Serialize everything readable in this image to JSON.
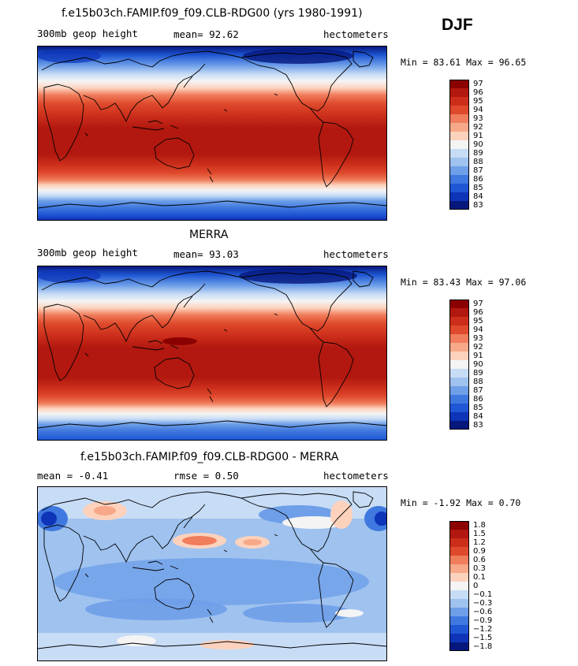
{
  "season": "DJF",
  "panels": [
    {
      "title": "f.e15b03ch.FAMIP.f09_f09.CLB-RDG00 (yrs 1980-1991)",
      "left_label": "300mb geop height",
      "center_label": "mean=  92.62",
      "units": "hectometers",
      "minmax": "Min =  83.61 Max =  96.65",
      "levels": [
        "97",
        "96",
        "95",
        "94",
        "93",
        "92",
        "91",
        "90",
        "89",
        "88",
        "87",
        "86",
        "85",
        "84",
        "83"
      ],
      "colors": [
        "#8b0000",
        "#b2180f",
        "#cc2e1b",
        "#df4a2c",
        "#f07d5c",
        "#f7a889",
        "#fdd2bd",
        "#f4f4f4",
        "#c7dcf5",
        "#9fc2ef",
        "#6e9fe8",
        "#3f78df",
        "#1f57d4",
        "#0e34b8",
        "#06187e"
      ]
    },
    {
      "title": "MERRA",
      "left_label": "300mb geop height",
      "center_label": "mean=  93.03",
      "units": "hectometers",
      "minmax": "Min =  83.43 Max =  97.06",
      "levels": [
        "97",
        "96",
        "95",
        "94",
        "93",
        "92",
        "91",
        "90",
        "89",
        "88",
        "87",
        "86",
        "85",
        "84",
        "83"
      ],
      "colors": [
        "#8b0000",
        "#b2180f",
        "#cc2e1b",
        "#df4a2c",
        "#f07d5c",
        "#f7a889",
        "#fdd2bd",
        "#f4f4f4",
        "#c7dcf5",
        "#9fc2ef",
        "#6e9fe8",
        "#3f78df",
        "#1f57d4",
        "#0e34b8",
        "#06187e"
      ]
    },
    {
      "title": "f.e15b03ch.FAMIP.f09_f09.CLB-RDG00 - MERRA",
      "left_label": "mean =  -0.41",
      "center_label": "rmse =   0.50",
      "units": "hectometers",
      "minmax": "Min =  -1.92 Max =   0.70",
      "levels": [
        "1.8",
        "1.5",
        "1.2",
        "0.9",
        "0.6",
        "0.3",
        "0.1",
        "0",
        "−0.1",
        "−0.3",
        "−0.6",
        "−0.9",
        "−1.2",
        "−1.5",
        "−1.8"
      ],
      "colors": [
        "#8b0000",
        "#b2180f",
        "#cc2e1b",
        "#df4a2c",
        "#f07d5c",
        "#f7a889",
        "#fdd2bd",
        "#f4f4f4",
        "#c7dcf5",
        "#9fc2ef",
        "#6e9fe8",
        "#3f78df",
        "#1f57d4",
        "#0e34b8",
        "#06187e"
      ]
    }
  ]
}
